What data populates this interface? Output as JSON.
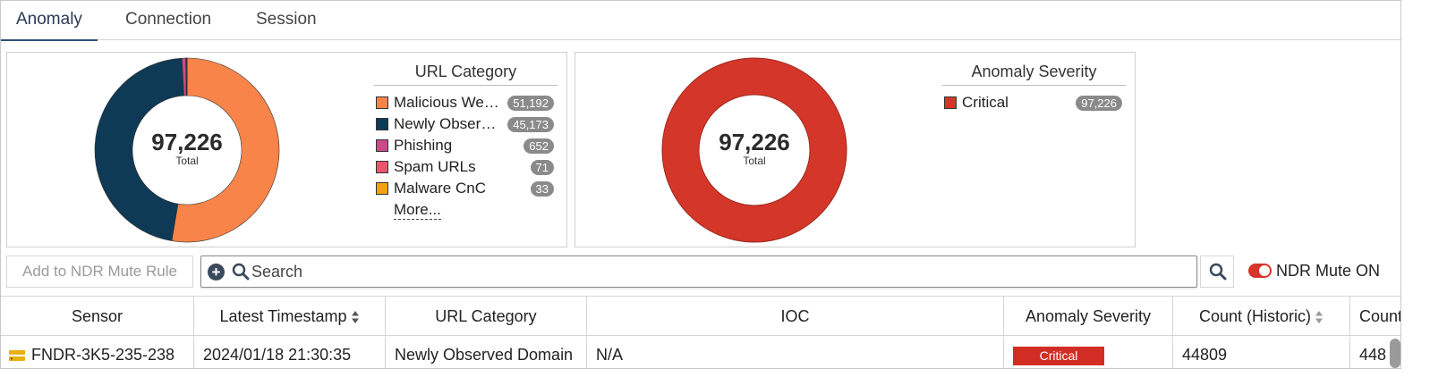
{
  "tabs": [
    {
      "label": "Anomaly",
      "active": true
    },
    {
      "label": "Connection",
      "active": false
    },
    {
      "label": "Session",
      "active": false
    }
  ],
  "widgets": [
    {
      "legend_title": "URL Category",
      "total": "97,226",
      "total_label": "Total",
      "items": [
        {
          "label": "Malicious Websites",
          "count": "51,192",
          "color": "#f9844a"
        },
        {
          "label": "Newly Observed Domain",
          "count": "45,173",
          "color": "#0e3a56"
        },
        {
          "label": "Phishing",
          "count": "652",
          "color": "#c94a8a"
        },
        {
          "label": "Spam URLs",
          "count": "71",
          "color": "#e9566e"
        },
        {
          "label": "Malware CnC",
          "count": "33",
          "color": "#f3a20f"
        }
      ],
      "more_label": "More..."
    },
    {
      "legend_title": "Anomaly Severity",
      "total": "97,226",
      "total_label": "Total",
      "items": [
        {
          "label": "Critical",
          "count": "97,226",
          "color": "#d5362a"
        }
      ]
    }
  ],
  "toolbar": {
    "mute_rule_button": "Add to NDR Mute Rule",
    "search_placeholder": "Search",
    "mute_toggle_label": "NDR Mute ON",
    "mute_toggle_on": true
  },
  "table": {
    "columns": [
      "Sensor",
      "Latest Timestamp",
      "URL Category",
      "IOC",
      "Anomaly Severity",
      "Count (Historic)",
      "Count"
    ],
    "rows": [
      {
        "sensor": "FNDR-3K5-235-238",
        "timestamp": "2024/01/18 21:30:35",
        "url_category": "Newly Observed Domain",
        "ioc": "N/A",
        "severity": "Critical",
        "count_historic": "44809",
        "count": "448"
      }
    ]
  },
  "icons": {
    "add": "plus-circle-icon",
    "search": "magnifier-icon",
    "sort": "sort-arrows-icon",
    "sensor": "sensor-device-icon"
  },
  "colors": {
    "accent": "#2f4f74",
    "critical": "#d22d24",
    "badge": "#8a8a8a"
  }
}
